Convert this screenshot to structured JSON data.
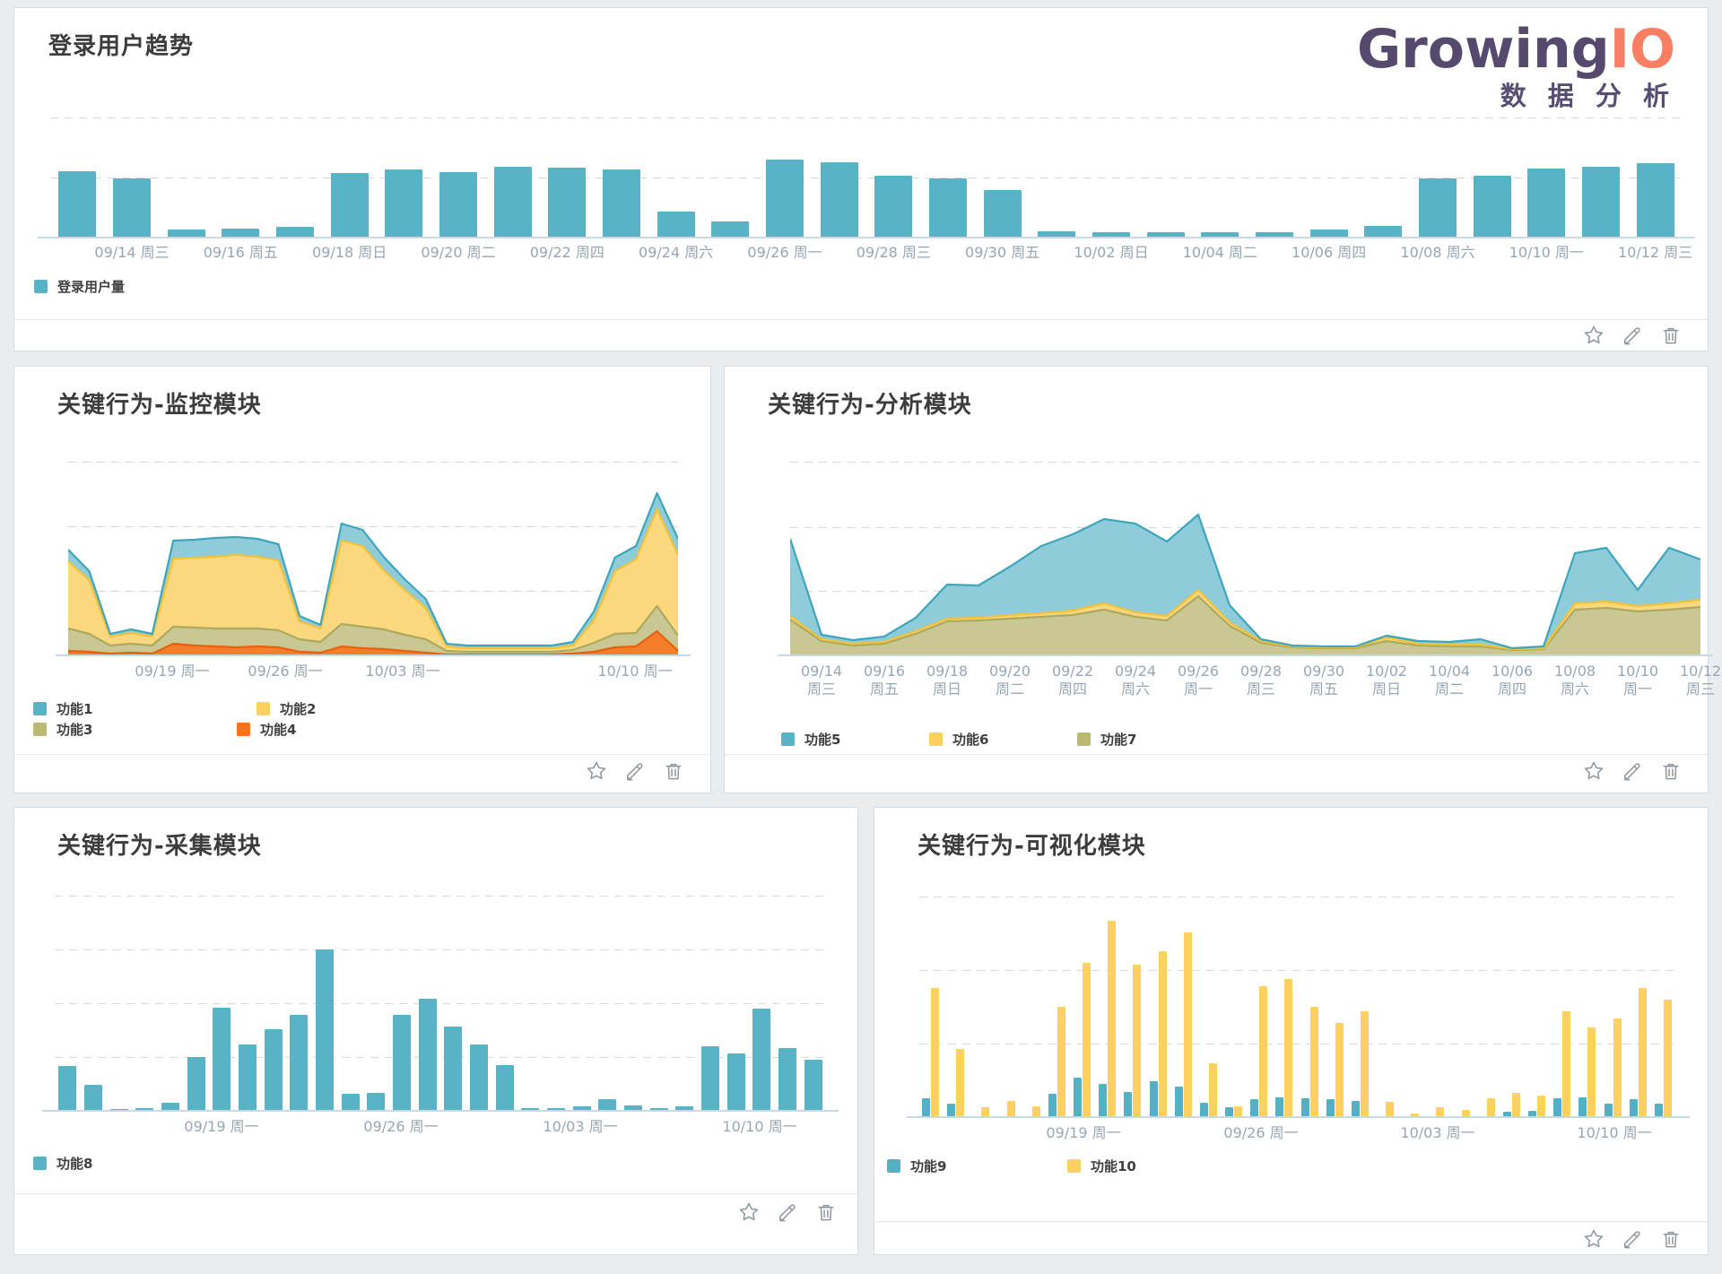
{
  "logo": {
    "brand_growing": "Growing",
    "brand_io": "IO",
    "subtitle": "数 据 分 析"
  },
  "panel_actions": {
    "icons": [
      "star-icon",
      "pencil-icon",
      "trash-icon"
    ]
  },
  "colors": {
    "page_background": "#e9edf0",
    "teal": "#58b3c6",
    "teal_line": "#3fa5bc",
    "teal_area_fill": "#8fccda",
    "yellow": "#fcd160",
    "yellow_line": "#f3c238",
    "yellow_area_fill": "#fbd77d",
    "olive": "#bcba72",
    "olive_line": "#adaa5f",
    "olive_area_fill": "#c9c794",
    "orange": "#f4731f",
    "orange_line": "#e8610e",
    "orange_area_fill": "#f57e2a",
    "brand_purple": "#554a6e",
    "brand_coral": "#f97e62",
    "axis_line": "#c7d9e4",
    "tick_text": "#97a6b3"
  },
  "chart_data": [
    {
      "id": "login_trend",
      "type": "bar",
      "title": "登录用户趋势",
      "xlabel": "",
      "ylabel": "",
      "grid": "dashed-horizontal",
      "unit": "relative height (no y-axis labels shown)",
      "categories": [
        "09/13",
        "09/14",
        "09/15",
        "09/16",
        "09/17",
        "09/18",
        "09/19",
        "09/20",
        "09/21",
        "09/22",
        "09/23",
        "09/24",
        "09/25",
        "09/26",
        "09/27",
        "09/28",
        "09/29",
        "09/30",
        "10/01",
        "10/02",
        "10/03",
        "10/04",
        "10/05",
        "10/06",
        "10/07",
        "10/08",
        "10/09",
        "10/10",
        "10/11",
        "10/12"
      ],
      "tick_labels": [
        "09/14 周三",
        "09/16 周五",
        "09/18 周日",
        "09/20 周二",
        "09/22 周四",
        "09/24 周六",
        "09/26 周一",
        "09/28 周三",
        "09/30 周五",
        "10/02 周日",
        "10/04 周二",
        "10/06 周四",
        "10/08 周六",
        "10/10 周一",
        "10/12 周三"
      ],
      "series": [
        {
          "name": "登录用户量",
          "color": "#58b3c6",
          "values": [
            73,
            65,
            8,
            9,
            11,
            71,
            75,
            72,
            78,
            77,
            75,
            28,
            17,
            86,
            83,
            68,
            65,
            52,
            6,
            5,
            5,
            5,
            5,
            8,
            12,
            65,
            68,
            76,
            78,
            82
          ]
        }
      ]
    },
    {
      "id": "behavior_monitor",
      "type": "area",
      "title": "关键行为-监控模块",
      "xlabel": "",
      "ylabel": "",
      "grid": "dashed-horizontal",
      "stacked": true,
      "legend_position": "bottom",
      "unit": "relative height (no y-axis labels shown)",
      "categories": [
        "09/13",
        "09/14",
        "09/15",
        "09/16",
        "09/17",
        "09/18",
        "09/19",
        "09/20",
        "09/21",
        "09/22",
        "09/23",
        "09/24",
        "09/25",
        "09/26",
        "09/27",
        "09/28",
        "09/29",
        "09/30",
        "10/01",
        "10/02",
        "10/03",
        "10/04",
        "10/05",
        "10/06",
        "10/07",
        "10/08",
        "10/09",
        "10/10",
        "10/11",
        "10/12"
      ],
      "tick_labels": [
        "09/19 周一",
        "09/26 周一",
        "10/03 周一",
        "10/10 周一"
      ],
      "series": [
        {
          "name": "功能1",
          "color": "#3fa5bc",
          "fill": "#8fccda",
          "values": [
            13,
            10,
            3,
            4,
            3,
            20,
            20,
            21,
            20,
            20,
            18,
            6,
            4,
            19,
            18,
            15,
            12,
            10,
            3,
            3,
            3,
            3,
            3,
            3,
            4,
            10,
            15,
            15,
            18,
            18
          ]
        },
        {
          "name": "功能2",
          "color": "#f3c238",
          "fill": "#fbd77d",
          "values": [
            75,
            60,
            10,
            12,
            10,
            76,
            78,
            80,
            82,
            80,
            78,
            20,
            15,
            93,
            90,
            66,
            50,
            35,
            5,
            4,
            4,
            4,
            4,
            4,
            5,
            25,
            70,
            82,
            108,
            90
          ]
        },
        {
          "name": "功能3",
          "color": "#adaa5f",
          "fill": "#c9c794",
          "values": [
            25,
            20,
            9,
            10,
            9,
            19,
            20,
            20,
            21,
            20,
            19,
            14,
            12,
            25,
            24,
            22,
            18,
            15,
            4,
            3,
            3,
            3,
            3,
            3,
            4,
            10,
            15,
            15,
            28,
            17
          ]
        },
        {
          "name": "功能4",
          "color": "#e8610e",
          "fill": "#f57e2a",
          "values": [
            6,
            5,
            3,
            4,
            3,
            14,
            12,
            11,
            10,
            11,
            10,
            5,
            4,
            11,
            9,
            8,
            6,
            4,
            2,
            2,
            2,
            2,
            2,
            2,
            3,
            5,
            10,
            11,
            28,
            6
          ]
        }
      ]
    },
    {
      "id": "behavior_analysis",
      "type": "area",
      "title": "关键行为-分析模块",
      "xlabel": "",
      "ylabel": "",
      "grid": "dashed-horizontal",
      "stacked": true,
      "legend_position": "bottom",
      "unit": "relative height (no y-axis labels shown)",
      "categories": [
        "09/13",
        "09/14",
        "09/15",
        "09/16",
        "09/17",
        "09/18",
        "09/19",
        "09/20",
        "09/21",
        "09/22",
        "09/23",
        "09/24",
        "09/25",
        "09/26",
        "09/27",
        "09/28",
        "09/29",
        "09/30",
        "10/01",
        "10/02",
        "10/03",
        "10/04",
        "10/05",
        "10/06",
        "10/07",
        "10/08",
        "10/09",
        "10/10",
        "10/11",
        "10/12"
      ],
      "tick_labels": [
        "09/14 周三",
        "09/16 周五",
        "09/18 周日",
        "09/20 周二",
        "09/22 周四",
        "09/24 周六",
        "09/26 周一",
        "09/28 周三",
        "09/30 周五",
        "10/02 周日",
        "10/04 周二",
        "10/06 周四",
        "10/08 周六",
        "10/10 周一",
        "10/12 周三"
      ],
      "series": [
        {
          "name": "功能5",
          "color": "#3fa5bc",
          "fill": "#8fccda",
          "values": [
            86,
            5,
            4,
            6,
            15,
            38,
            36,
            54,
            75,
            85,
            94,
            99,
            83,
            84,
            19,
            2,
            1,
            1,
            1,
            2,
            3,
            3,
            6,
            1,
            2,
            56,
            60,
            18,
            62,
            45
          ]
        },
        {
          "name": "功能6",
          "color": "#f3c238",
          "fill": "#fbd77d",
          "values": [
            4,
            2,
            2,
            2,
            3,
            3,
            3,
            4,
            4,
            5,
            7,
            5,
            5,
            7,
            4,
            2,
            1,
            1,
            1,
            4,
            2,
            2,
            2,
            1,
            1,
            7,
            7,
            6,
            7,
            8
          ]
        },
        {
          "name": "功能7",
          "color": "#adaa5f",
          "fill": "#c9c794",
          "values": [
            41,
            17,
            12,
            14,
            25,
            39,
            40,
            42,
            44,
            46,
            52,
            44,
            40,
            67,
            34,
            15,
            10,
            9,
            9,
            17,
            12,
            11,
            11,
            7,
            8,
            52,
            54,
            50,
            52,
            55
          ]
        }
      ]
    },
    {
      "id": "behavior_collect",
      "type": "bar",
      "title": "关键行为-采集模块",
      "xlabel": "",
      "ylabel": "",
      "grid": "dashed-horizontal",
      "unit": "relative height (no y-axis labels shown)",
      "categories": [
        "09/13",
        "09/14",
        "09/15",
        "09/16",
        "09/17",
        "09/18",
        "09/19",
        "09/20",
        "09/21",
        "09/22",
        "09/23",
        "09/24",
        "09/25",
        "09/26",
        "09/27",
        "09/28",
        "09/29",
        "09/30",
        "10/01",
        "10/02",
        "10/03",
        "10/04",
        "10/05",
        "10/06",
        "10/07",
        "10/08",
        "10/09",
        "10/10",
        "10/11",
        "10/12"
      ],
      "tick_labels": [
        "09/19 周一",
        "09/26 周一",
        "10/03 周一",
        "10/10 周一"
      ],
      "series": [
        {
          "name": "功能8",
          "color": "#58b3c6",
          "values": [
            49,
            28,
            1,
            2,
            8,
            59,
            114,
            73,
            90,
            106,
            179,
            18,
            19,
            106,
            124,
            93,
            73,
            50,
            2,
            2,
            4,
            12,
            5,
            2,
            4,
            71,
            63,
            113,
            69,
            56
          ]
        }
      ]
    },
    {
      "id": "behavior_visual",
      "type": "bar",
      "title": "关键行为-可视化模块",
      "xlabel": "",
      "ylabel": "",
      "grid": "dashed-horizontal",
      "grouped": true,
      "legend_position": "bottom",
      "unit": "relative height (no y-axis labels shown)",
      "categories": [
        "09/13",
        "09/14",
        "09/15",
        "09/16",
        "09/17",
        "09/18",
        "09/19",
        "09/20",
        "09/21",
        "09/22",
        "09/23",
        "09/24",
        "09/25",
        "09/26",
        "09/27",
        "09/28",
        "09/29",
        "09/30",
        "10/01",
        "10/02",
        "10/03",
        "10/04",
        "10/05",
        "10/06",
        "10/07",
        "10/08",
        "10/09",
        "10/10",
        "10/11",
        "10/12"
      ],
      "tick_labels": [
        "09/19 周一",
        "09/26 周一",
        "10/03 周一",
        "10/10 周一"
      ],
      "series": [
        {
          "name": "功能9",
          "color": "#52b1c5",
          "values": [
            20,
            14,
            0,
            0,
            0,
            25,
            43,
            36,
            27,
            39,
            33,
            15,
            10,
            19,
            21,
            20,
            19,
            17,
            0,
            0,
            0,
            0,
            0,
            5,
            6,
            20,
            21,
            14,
            19,
            14
          ]
        },
        {
          "name": "功能10",
          "color": "#fcd160",
          "values": [
            143,
            75,
            10,
            17,
            11,
            122,
            171,
            218,
            169,
            184,
            205,
            59,
            11,
            145,
            153,
            122,
            104,
            117,
            16,
            3,
            10,
            7,
            20,
            26,
            23,
            117,
            99,
            109,
            143,
            130
          ]
        }
      ]
    }
  ]
}
